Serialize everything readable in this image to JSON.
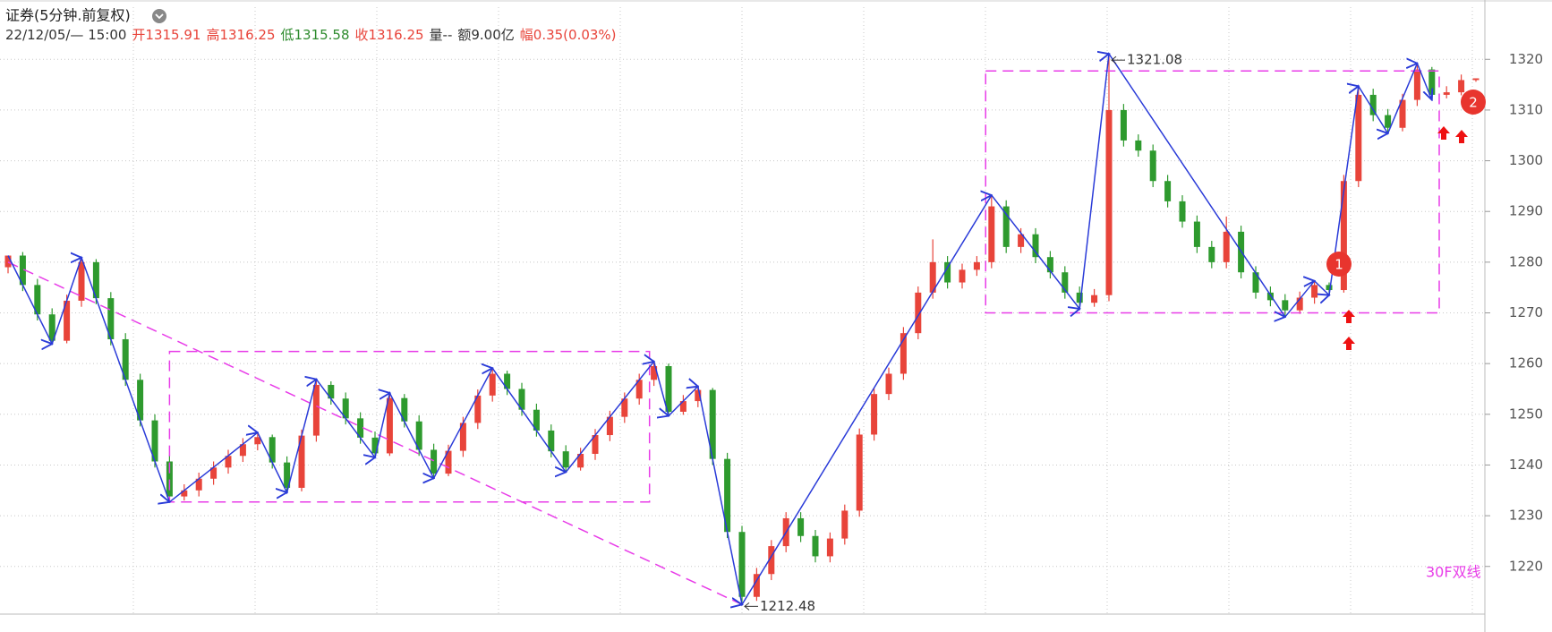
{
  "chart_data": {
    "type": "candlestick",
    "title": "证券(5分钟.前复权)",
    "info": [
      {
        "text": "22/12/05/— 15:00",
        "color": "#333333"
      },
      {
        "text": "开1315.91",
        "color": "#e8443a"
      },
      {
        "text": "高1316.25",
        "color": "#e8443a"
      },
      {
        "text": "低1315.58",
        "color": "#2e8b2e"
      },
      {
        "text": "收1316.25",
        "color": "#e8443a"
      },
      {
        "text": "量--",
        "color": "#333333"
      },
      {
        "text": "额9.00亿",
        "color": "#333333"
      },
      {
        "text": "幅0.35(0.03%)",
        "color": "#e8443a"
      }
    ],
    "up_color": "#e8443a",
    "down_color": "#2e9a2e",
    "ylim": [
      1210.6,
      1331.7
    ],
    "yticks": [
      1220,
      1230,
      1240,
      1250,
      1260,
      1270,
      1280,
      1290,
      1300,
      1310,
      1320
    ],
    "xlim": [
      0,
      100
    ],
    "grid": true,
    "x": [
      0,
      1,
      2,
      3,
      4,
      5,
      6,
      7,
      8,
      9,
      10,
      11,
      12,
      13,
      14,
      15,
      16,
      17,
      18,
      19,
      20,
      21,
      22,
      23,
      24,
      25,
      26,
      27,
      28,
      29,
      30,
      31,
      32,
      33,
      34,
      35,
      36,
      37,
      38,
      39,
      40,
      41,
      42,
      43,
      44,
      45,
      46,
      47,
      48,
      49,
      50,
      51,
      52,
      53,
      54,
      55,
      56,
      57,
      58,
      59,
      60,
      61,
      62,
      63,
      64,
      65,
      66,
      67,
      68,
      69,
      70,
      71,
      72,
      73,
      74,
      75,
      76,
      77,
      78,
      79,
      80,
      81,
      82,
      83,
      84,
      85,
      86,
      87,
      88,
      89,
      90,
      91,
      92,
      93,
      94,
      95,
      96,
      97,
      98,
      99,
      100
    ],
    "open": [
      1279.0,
      1281.3,
      1275.5,
      1269.7,
      1264.5,
      1272.4,
      1280.0,
      1272.9,
      1264.8,
      1256.8,
      1248.8,
      1240.7,
      1233.8,
      1235.0,
      1237.3,
      1239.5,
      1241.8,
      1244.1,
      1245.5,
      1240.5,
      1235.5,
      1245.8,
      1255.8,
      1253.1,
      1249.2,
      1245.4,
      1242.3,
      1253.2,
      1248.6,
      1243.0,
      1238.3,
      1242.8,
      1248.3,
      1253.7,
      1258.0,
      1255.0,
      1250.9,
      1246.8,
      1242.7,
      1239.5,
      1242.2,
      1245.9,
      1249.5,
      1253.1,
      1256.8,
      1259.5,
      1250.5,
      1252.6,
      1254.8,
      1241.2,
      1226.8,
      1214.0,
      1218.5,
      1224.0,
      1229.5,
      1226.0,
      1222.0,
      1225.5,
      1231.0,
      1246.0,
      1254.0,
      1258.0,
      1266.0,
      1274.0,
      1280.0,
      1276.0,
      1278.5,
      1280.0,
      1291.0,
      1283.0,
      1285.5,
      1281.0,
      1278.0,
      1274.0,
      1272.0,
      1273.5,
      1310.0,
      1304.0,
      1302.0,
      1296.0,
      1292.0,
      1288.0,
      1283.0,
      1280.0,
      1286.0,
      1278.0,
      1274.0,
      1272.5,
      1270.5,
      1273.0,
      1275.5,
      1274.5,
      1296.0,
      1313.0,
      1309.0,
      1306.5,
      1312.0,
      1318.0,
      1313.0,
      1313.5,
      1315.91
    ],
    "high": [
      1281.3,
      1282.0,
      1276.7,
      1270.9,
      1273.6,
      1280.9,
      1280.6,
      1274.1,
      1266.0,
      1258.0,
      1250.0,
      1241.9,
      1236.2,
      1238.5,
      1240.7,
      1243.0,
      1245.3,
      1246.4,
      1246.0,
      1241.7,
      1247.0,
      1256.9,
      1256.5,
      1254.3,
      1250.4,
      1246.6,
      1254.2,
      1254.0,
      1249.8,
      1244.2,
      1244.0,
      1249.5,
      1254.9,
      1259.1,
      1258.6,
      1256.2,
      1252.1,
      1248.0,
      1243.9,
      1243.4,
      1247.1,
      1250.7,
      1254.3,
      1258.0,
      1260.4,
      1260.0,
      1253.8,
      1255.5,
      1255.2,
      1242.4,
      1228.0,
      1219.7,
      1225.2,
      1230.7,
      1230.7,
      1227.2,
      1226.7,
      1232.2,
      1247.2,
      1255.2,
      1259.2,
      1267.2,
      1275.2,
      1284.5,
      1281.2,
      1279.7,
      1281.2,
      1293.2,
      1292.2,
      1286.7,
      1286.7,
      1282.2,
      1279.2,
      1275.2,
      1274.7,
      1321.08,
      1311.2,
      1305.2,
      1303.2,
      1297.2,
      1293.2,
      1289.2,
      1284.2,
      1289.0,
      1287.2,
      1279.2,
      1275.2,
      1273.7,
      1274.2,
      1276.3,
      1276.0,
      1297.2,
      1314.7,
      1314.2,
      1310.2,
      1313.2,
      1319.2,
      1318.5,
      1314.7,
      1317.0,
      1316.25
    ],
    "low": [
      1277.8,
      1274.3,
      1268.5,
      1263.9,
      1264.0,
      1271.2,
      1271.7,
      1263.6,
      1255.6,
      1247.6,
      1239.5,
      1232.7,
      1233.0,
      1233.8,
      1236.1,
      1238.3,
      1240.6,
      1242.9,
      1239.3,
      1234.6,
      1234.8,
      1244.6,
      1251.9,
      1248.0,
      1244.2,
      1241.5,
      1241.8,
      1247.4,
      1241.8,
      1237.4,
      1237.8,
      1241.6,
      1247.1,
      1252.5,
      1253.8,
      1249.7,
      1245.6,
      1241.5,
      1238.6,
      1238.9,
      1241.0,
      1244.7,
      1248.3,
      1251.9,
      1255.6,
      1249.7,
      1249.9,
      1251.4,
      1240.0,
      1225.6,
      1212.48,
      1213.2,
      1217.3,
      1222.8,
      1224.8,
      1220.8,
      1220.8,
      1224.3,
      1229.8,
      1244.8,
      1252.8,
      1256.8,
      1264.8,
      1272.8,
      1274.8,
      1274.8,
      1277.3,
      1278.8,
      1281.8,
      1281.8,
      1279.8,
      1276.8,
      1272.8,
      1270.8,
      1271.2,
      1272.3,
      1302.8,
      1300.8,
      1294.8,
      1290.8,
      1286.8,
      1281.8,
      1278.8,
      1278.8,
      1276.8,
      1272.8,
      1271.3,
      1269.2,
      1269.8,
      1271.8,
      1273.5,
      1274.0,
      1294.8,
      1307.8,
      1305.4,
      1305.8,
      1310.8,
      1312.0,
      1312.3,
      1312.9,
      1315.58
    ],
    "close": [
      1281.3,
      1275.5,
      1269.7,
      1264.5,
      1272.4,
      1280.0,
      1272.9,
      1264.8,
      1256.8,
      1248.8,
      1240.7,
      1233.8,
      1235.0,
      1237.3,
      1239.5,
      1241.8,
      1244.1,
      1245.5,
      1240.5,
      1235.5,
      1245.8,
      1255.8,
      1253.1,
      1249.2,
      1245.4,
      1242.3,
      1253.2,
      1248.6,
      1243.0,
      1238.3,
      1242.8,
      1248.3,
      1253.7,
      1258.0,
      1255.0,
      1250.9,
      1246.8,
      1242.7,
      1239.5,
      1242.2,
      1245.9,
      1249.5,
      1253.1,
      1256.8,
      1259.5,
      1250.5,
      1252.6,
      1254.8,
      1241.2,
      1226.8,
      1214.0,
      1218.5,
      1224.0,
      1229.5,
      1226.0,
      1222.0,
      1225.5,
      1231.0,
      1246.0,
      1254.0,
      1258.0,
      1266.0,
      1274.0,
      1280.0,
      1276.0,
      1278.5,
      1280.0,
      1291.0,
      1283.0,
      1285.5,
      1281.0,
      1278.0,
      1274.0,
      1272.0,
      1273.5,
      1310.0,
      1304.0,
      1302.0,
      1296.0,
      1292.0,
      1288.0,
      1283.0,
      1280.0,
      1286.0,
      1278.0,
      1274.0,
      1272.5,
      1270.5,
      1273.0,
      1275.5,
      1274.5,
      1296.0,
      1313.0,
      1309.0,
      1306.5,
      1312.0,
      1318.0,
      1313.0,
      1313.5,
      1315.91,
      1316.25
    ],
    "zigzag": {
      "color": "#2a3bd8",
      "x": [
        0,
        3,
        5,
        11,
        17,
        19,
        21,
        25,
        26,
        29,
        33,
        38,
        44,
        45,
        47,
        50,
        67,
        73,
        75,
        87,
        89,
        90,
        92,
        94,
        96,
        97
      ],
      "values": [
        1281.3,
        1263.9,
        1280.9,
        1232.7,
        1246.4,
        1234.6,
        1256.9,
        1241.5,
        1254.2,
        1237.4,
        1259.1,
        1238.6,
        1260.4,
        1249.7,
        1255.5,
        1212.48,
        1293.2,
        1270.8,
        1321.08,
        1269.2,
        1276.3,
        1273.5,
        1314.7,
        1305.4,
        1319.2,
        1312.0
      ]
    },
    "boxes": [
      {
        "x": [
          11,
          43.7
        ],
        "y": [
          1232.7,
          1262.4
        ]
      },
      {
        "x": [
          66.6,
          97.5
        ],
        "y": [
          1270.0,
          1317.7
        ]
      }
    ],
    "trendline": {
      "x": [
        0,
        50
      ],
      "values": [
        1280.0,
        1212.48
      ]
    },
    "annotation_color": "#e83ce8",
    "note": "30F双线",
    "markers": [
      "1",
      "2"
    ]
  }
}
